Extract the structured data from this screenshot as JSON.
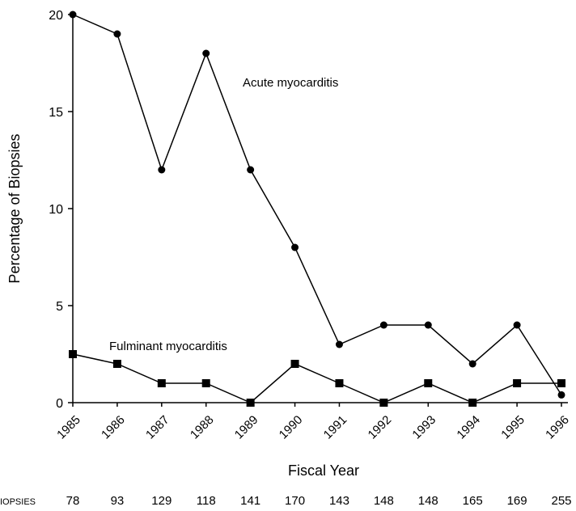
{
  "chart_data": {
    "type": "line",
    "ylabel": "Percentage of Biopsies",
    "xlabel": "Fiscal Year",
    "x": [
      1985,
      1986,
      1987,
      1988,
      1989,
      1990,
      1991,
      1992,
      1993,
      1994,
      1995,
      1996
    ],
    "xlim": [
      1985,
      1996
    ],
    "ylim": [
      0,
      20
    ],
    "yticks": [
      0,
      5,
      10,
      15,
      20
    ],
    "series": [
      {
        "name": "Acute myocarditis",
        "color": "#000000",
        "marker": "circle",
        "values": [
          20,
          19,
          12,
          18,
          12,
          8,
          3,
          4,
          4,
          2,
          4,
          0.4
        ]
      },
      {
        "name": "Fulminant myocarditis",
        "color": "#000000",
        "marker": "square",
        "values": [
          2.5,
          2,
          1,
          1,
          0,
          2,
          1,
          0,
          1,
          0,
          1,
          1
        ]
      }
    ],
    "counts_label": "NO. OF BIOPSIES",
    "biopsy_counts": [
      78,
      93,
      129,
      118,
      141,
      170,
      143,
      148,
      148,
      165,
      169,
      255
    ]
  }
}
